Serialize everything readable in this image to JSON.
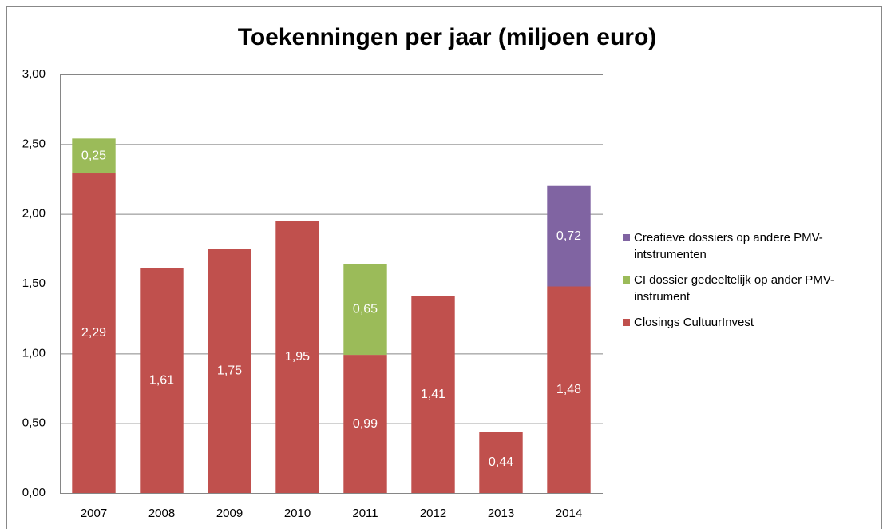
{
  "chart_data": {
    "type": "bar",
    "stacked": true,
    "title": "Toekenningen per jaar (miljoen euro)",
    "categories": [
      "2007",
      "2008",
      "2009",
      "2010",
      "2011",
      "2012",
      "2013",
      "2014"
    ],
    "series": [
      {
        "name": "Closings CultuurInvest",
        "color": "#c0504d",
        "values": [
          2.29,
          1.61,
          1.75,
          1.95,
          0.99,
          1.41,
          0.44,
          1.48
        ],
        "value_labels": [
          "2,29",
          "1,61",
          "1,75",
          "1,95",
          "0,99",
          "1,41",
          "0,44",
          "1,48"
        ]
      },
      {
        "name": "CI dossier gedeeltelijk op ander PMV-instrument",
        "color": "#9bbb59",
        "values": [
          0.25,
          null,
          null,
          null,
          0.65,
          null,
          null,
          null
        ],
        "value_labels": [
          "0,25",
          null,
          null,
          null,
          "0,65",
          null,
          null,
          null
        ]
      },
      {
        "name": "Creatieve dossiers op andere PMV-intstrumenten",
        "color": "#8064a2",
        "values": [
          null,
          null,
          null,
          null,
          null,
          null,
          null,
          0.72
        ],
        "value_labels": [
          null,
          null,
          null,
          null,
          null,
          null,
          null,
          "0,72"
        ]
      }
    ],
    "ylim": [
      0,
      3
    ],
    "yticks": [
      {
        "value": 0,
        "label": "0,00"
      },
      {
        "value": 0.5,
        "label": "0,50"
      },
      {
        "value": 1,
        "label": "1,00"
      },
      {
        "value": 1.5,
        "label": "1,50"
      },
      {
        "value": 2,
        "label": "2,00"
      },
      {
        "value": 2.5,
        "label": "2,50"
      },
      {
        "value": 3,
        "label": "3,00"
      }
    ],
    "grid": true,
    "legend": "right"
  }
}
